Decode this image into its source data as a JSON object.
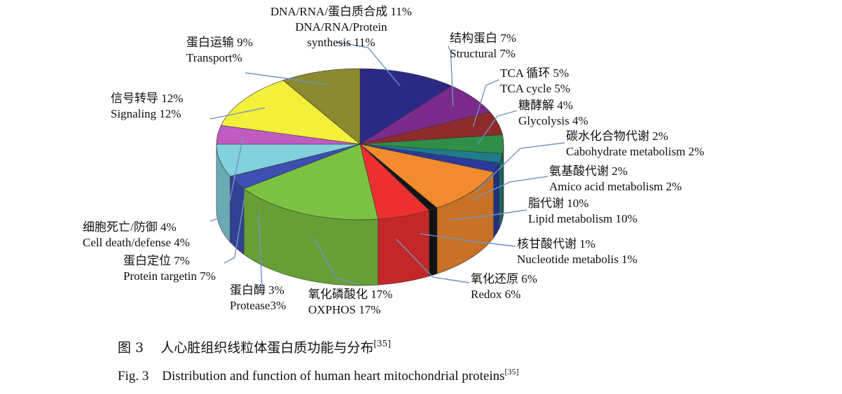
{
  "chart_data": {
    "type": "pie",
    "style": "3d",
    "categories": [
      "DNA/RNA/Protein synthesis",
      "Structural",
      "TCA cycle",
      "Glycolysis",
      "Cabohydrate metabolism",
      "Amico acid metabolism",
      "Lipid metabolism",
      "Nucleotide metabolis",
      "Redox",
      "OXPHOS",
      "Protease",
      "Protein targetin",
      "Cell death/defense",
      "Signaling",
      "Transport"
    ],
    "values": [
      11,
      7,
      5,
      4,
      2,
      2,
      10,
      1,
      6,
      17,
      3,
      7,
      4,
      12,
      9
    ],
    "colors": [
      "#2a2a86",
      "#7a2b8c",
      "#8e2a2a",
      "#2f8f46",
      "#1f7b8a",
      "#2b3a9a",
      "#f28a2e",
      "#151515",
      "#ee2f2f",
      "#7cc242",
      "#3d4fb3",
      "#82d1dd",
      "#c25bc4",
      "#f3ef3b",
      "#8c8a2e"
    ],
    "labels": [
      {
        "cn": "DNA/RNA/蛋白质合成 11%",
        "en1": "DNA/RNA/Protein",
        "en2": "synthesis 11%"
      },
      {
        "cn": "结构蛋白 7%",
        "en1": "Structural 7%"
      },
      {
        "cn": "TCA 循环 5%",
        "en1": "TCA cycle 5%"
      },
      {
        "cn": "糖酵解 4%",
        "en1": "Glycolysis 4%"
      },
      {
        "cn": "碳水化合物代谢 2%",
        "en1": "Cabohydrate metabolism 2%"
      },
      {
        "cn": "氨基酸代谢 2%",
        "en1": "Amico acid metabolism 2%"
      },
      {
        "cn": "脂代谢 10%",
        "en1": "Lipid metabolism 10%"
      },
      {
        "cn": "核甘酸代谢 1%",
        "en1": "Nucleotide metabolis 1%"
      },
      {
        "cn": "氧化还原 6%",
        "en1": "Redox 6%"
      },
      {
        "cn": "氧化磷酸化 17%",
        "en1": "OXPHOS 17%"
      },
      {
        "cn": "蛋白酶 3%",
        "en1": "Protease3%"
      },
      {
        "cn": "蛋白定位 7%",
        "en1": "Protein targetin 7%"
      },
      {
        "cn": "细胞死亡/防御 4%",
        "en1": "Cell death/defense 4%"
      },
      {
        "cn": "信号转导 12%",
        "en1": "Signaling 12%"
      },
      {
        "cn": "蛋白运输 9%",
        "en1": "Transport%"
      }
    ]
  },
  "caption": {
    "cn_num": "图 3",
    "cn_text": "人心脏组织线粒体蛋白质功能与分布",
    "cn_ref": "[35]",
    "en_num": "Fig. 3",
    "en_text": "Distribution and function of human heart mitochondrial proteins",
    "en_ref": "[35]"
  }
}
